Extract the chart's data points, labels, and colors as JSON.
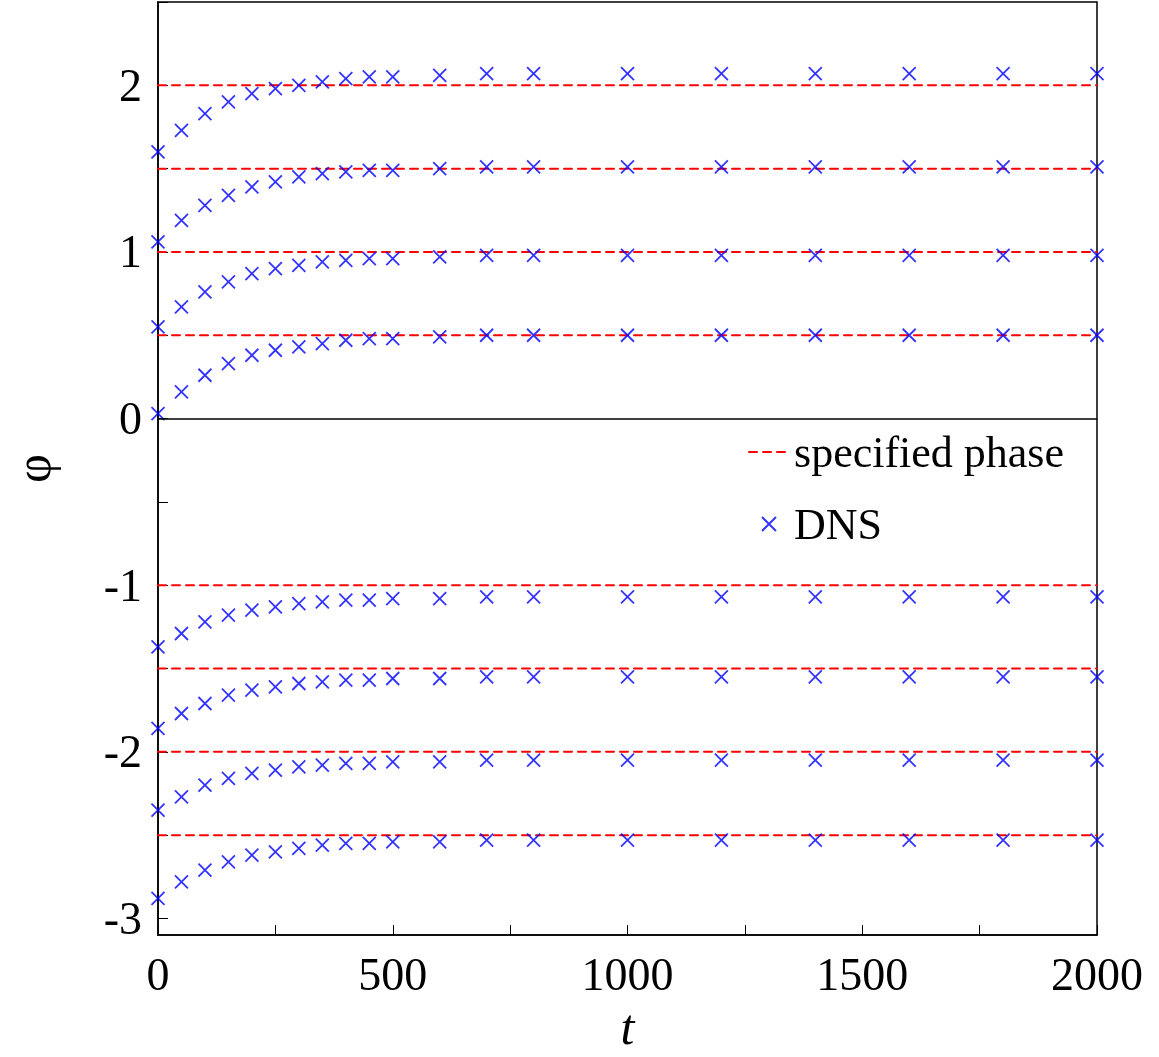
{
  "chart_data": {
    "type": "scatter",
    "xlabel": "t",
    "ylabel": "φ",
    "xlim": [
      0,
      2000
    ],
    "xticks": [
      0,
      {
        "value": 250,
        "label": null
      },
      500,
      {
        "value": 750,
        "label": null
      },
      1000,
      {
        "value": 1250,
        "label": null
      },
      1500,
      {
        "value": 1750,
        "label": null
      },
      2000
    ],
    "ylim": [
      -3.1,
      2.5
    ],
    "yticks": [
      -3,
      {
        "value": -2.5,
        "label": null
      },
      -2,
      {
        "value": -1.5,
        "label": null
      },
      -1,
      {
        "value": -0.5,
        "label": null
      },
      0,
      {
        "value": 0.5,
        "label": null
      },
      1,
      {
        "value": 1.5,
        "label": null
      },
      2,
      {
        "value": 2.5,
        "label": null
      }
    ],
    "x": [
      0,
      50,
      100,
      150,
      200,
      250,
      300,
      350,
      400,
      450,
      500,
      600,
      700,
      800,
      1000,
      1200,
      1400,
      1600,
      1800,
      2000
    ],
    "grid": false,
    "legend": "right",
    "ref_lines": [
      {
        "axis": "y",
        "value": 0,
        "color": "#000000",
        "line_style": "solid"
      }
    ],
    "series": [
      {
        "type": "line",
        "name": "specified phase",
        "color": "#ff0000",
        "line_style": "dashed",
        "values": [
          2,
          2,
          2,
          2,
          2,
          2,
          2,
          2,
          2,
          2,
          2,
          2,
          2,
          2,
          2,
          2,
          2,
          2,
          2,
          2
        ]
      },
      {
        "type": "line",
        "color": "#ff0000",
        "line_style": "dashed",
        "values": [
          1.5,
          1.5,
          1.5,
          1.5,
          1.5,
          1.5,
          1.5,
          1.5,
          1.5,
          1.5,
          1.5,
          1.5,
          1.5,
          1.5,
          1.5,
          1.5,
          1.5,
          1.5,
          1.5,
          1.5
        ]
      },
      {
        "type": "line",
        "color": "#ff0000",
        "line_style": "dashed",
        "values": [
          1,
          1,
          1,
          1,
          1,
          1,
          1,
          1,
          1,
          1,
          1,
          1,
          1,
          1,
          1,
          1,
          1,
          1,
          1,
          1
        ]
      },
      {
        "type": "line",
        "color": "#ff0000",
        "line_style": "dashed",
        "values": [
          0.5,
          0.5,
          0.5,
          0.5,
          0.5,
          0.5,
          0.5,
          0.5,
          0.5,
          0.5,
          0.5,
          0.5,
          0.5,
          0.5,
          0.5,
          0.5,
          0.5,
          0.5,
          0.5,
          0.5
        ]
      },
      {
        "type": "line",
        "color": "#ff0000",
        "line_style": "dashed",
        "values": [
          -1,
          -1,
          -1,
          -1,
          -1,
          -1,
          -1,
          -1,
          -1,
          -1,
          -1,
          -1,
          -1,
          -1,
          -1,
          -1,
          -1,
          -1,
          -1,
          -1
        ]
      },
      {
        "type": "line",
        "color": "#ff0000",
        "line_style": "dashed",
        "values": [
          -1.5,
          -1.5,
          -1.5,
          -1.5,
          -1.5,
          -1.5,
          -1.5,
          -1.5,
          -1.5,
          -1.5,
          -1.5,
          -1.5,
          -1.5,
          -1.5,
          -1.5,
          -1.5,
          -1.5,
          -1.5,
          -1.5,
          -1.5
        ]
      },
      {
        "type": "line",
        "color": "#ff0000",
        "line_style": "dashed",
        "values": [
          -2,
          -2,
          -2,
          -2,
          -2,
          -2,
          -2,
          -2,
          -2,
          -2,
          -2,
          -2,
          -2,
          -2,
          -2,
          -2,
          -2,
          -2,
          -2,
          -2
        ]
      },
      {
        "type": "line",
        "color": "#ff0000",
        "line_style": "dashed",
        "values": [
          -2.5,
          -2.5,
          -2.5,
          -2.5,
          -2.5,
          -2.5,
          -2.5,
          -2.5,
          -2.5,
          -2.5,
          -2.5,
          -2.5,
          -2.5,
          -2.5,
          -2.5,
          -2.5,
          -2.5,
          -2.5,
          -2.5,
          -2.5
        ]
      },
      {
        "name": "DNS",
        "marker": "cross",
        "color": "#0000ff",
        "values": [
          1.6,
          1.73,
          1.83,
          1.9,
          1.95,
          1.98,
          2.0,
          2.02,
          2.04,
          2.05,
          2.05,
          2.06,
          2.07,
          2.07,
          2.07,
          2.07,
          2.07,
          2.07,
          2.07,
          2.07
        ]
      },
      {
        "marker": "cross",
        "color": "#0000ff",
        "values": [
          1.06,
          1.19,
          1.28,
          1.34,
          1.39,
          1.42,
          1.45,
          1.47,
          1.48,
          1.49,
          1.49,
          1.5,
          1.51,
          1.51,
          1.51,
          1.51,
          1.51,
          1.51,
          1.51,
          1.51
        ]
      },
      {
        "marker": "cross",
        "color": "#0000ff",
        "values": [
          0.55,
          0.67,
          0.76,
          0.82,
          0.87,
          0.9,
          0.92,
          0.94,
          0.95,
          0.96,
          0.96,
          0.97,
          0.98,
          0.98,
          0.98,
          0.98,
          0.98,
          0.98,
          0.98,
          0.98
        ]
      },
      {
        "marker": "cross",
        "color": "#0000ff",
        "values": [
          0.03,
          0.16,
          0.26,
          0.33,
          0.38,
          0.41,
          0.43,
          0.45,
          0.47,
          0.48,
          0.48,
          0.49,
          0.5,
          0.5,
          0.5,
          0.5,
          0.5,
          0.5,
          0.5,
          0.5
        ]
      },
      {
        "marker": "cross",
        "color": "#0000ff",
        "values": [
          -1.37,
          -1.29,
          -1.22,
          -1.18,
          -1.15,
          -1.13,
          -1.11,
          -1.1,
          -1.09,
          -1.09,
          -1.08,
          -1.08,
          -1.07,
          -1.07,
          -1.07,
          -1.07,
          -1.07,
          -1.07,
          -1.07,
          -1.07
        ]
      },
      {
        "marker": "cross",
        "color": "#0000ff",
        "values": [
          -1.86,
          -1.77,
          -1.71,
          -1.66,
          -1.63,
          -1.61,
          -1.59,
          -1.58,
          -1.57,
          -1.57,
          -1.56,
          -1.56,
          -1.55,
          -1.55,
          -1.55,
          -1.55,
          -1.55,
          -1.55,
          -1.55,
          -1.55
        ]
      },
      {
        "marker": "cross",
        "color": "#0000ff",
        "values": [
          -2.35,
          -2.27,
          -2.2,
          -2.16,
          -2.13,
          -2.11,
          -2.09,
          -2.08,
          -2.07,
          -2.07,
          -2.06,
          -2.06,
          -2.05,
          -2.05,
          -2.05,
          -2.05,
          -2.05,
          -2.05,
          -2.05,
          -2.05
        ]
      },
      {
        "marker": "cross",
        "color": "#0000ff",
        "values": [
          -2.88,
          -2.78,
          -2.71,
          -2.66,
          -2.62,
          -2.6,
          -2.58,
          -2.56,
          -2.55,
          -2.55,
          -2.54,
          -2.54,
          -2.53,
          -2.53,
          -2.53,
          -2.53,
          -2.53,
          -2.53,
          -2.53,
          -2.53
        ]
      }
    ]
  }
}
